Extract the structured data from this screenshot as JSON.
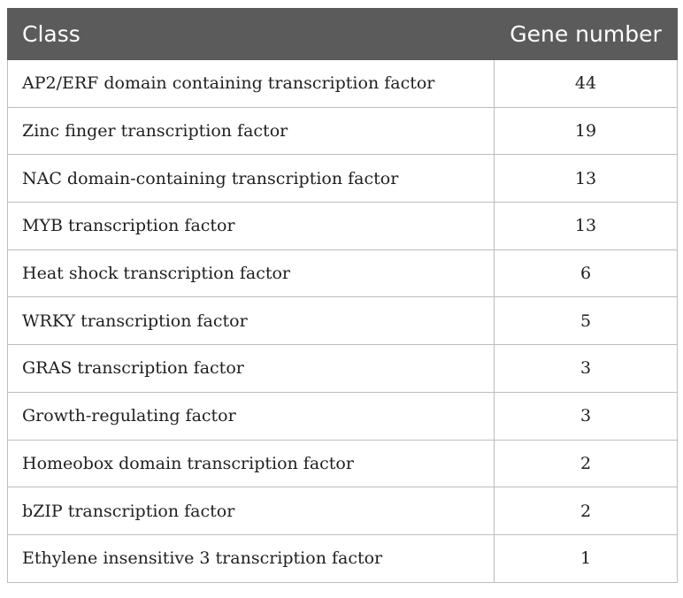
{
  "table": {
    "headers": {
      "class": "Class",
      "gene_number": "Gene number"
    },
    "rows": [
      {
        "class": "AP2/ERF domain containing transcription factor",
        "gene_number": "44"
      },
      {
        "class": "Zinc finger transcription factor",
        "gene_number": "19"
      },
      {
        "class": "NAC domain-containing transcription factor",
        "gene_number": "13"
      },
      {
        "class": "MYB transcription factor",
        "gene_number": "13"
      },
      {
        "class": "Heat shock transcription factor",
        "gene_number": "6"
      },
      {
        "class": "WRKY transcription factor",
        "gene_number": "5"
      },
      {
        "class": "GRAS transcription factor",
        "gene_number": "3"
      },
      {
        "class": "Growth-regulating factor",
        "gene_number": "3"
      },
      {
        "class": "Homeobox domain transcription factor",
        "gene_number": "2"
      },
      {
        "class": "bZIP transcription factor",
        "gene_number": "2"
      },
      {
        "class": "Ethylene insensitive 3 transcription factor",
        "gene_number": "1"
      }
    ]
  },
  "colors": {
    "header_background": "#5b5b5b",
    "header_text": "#ffffff",
    "grid_line": "#bdbdbd"
  }
}
